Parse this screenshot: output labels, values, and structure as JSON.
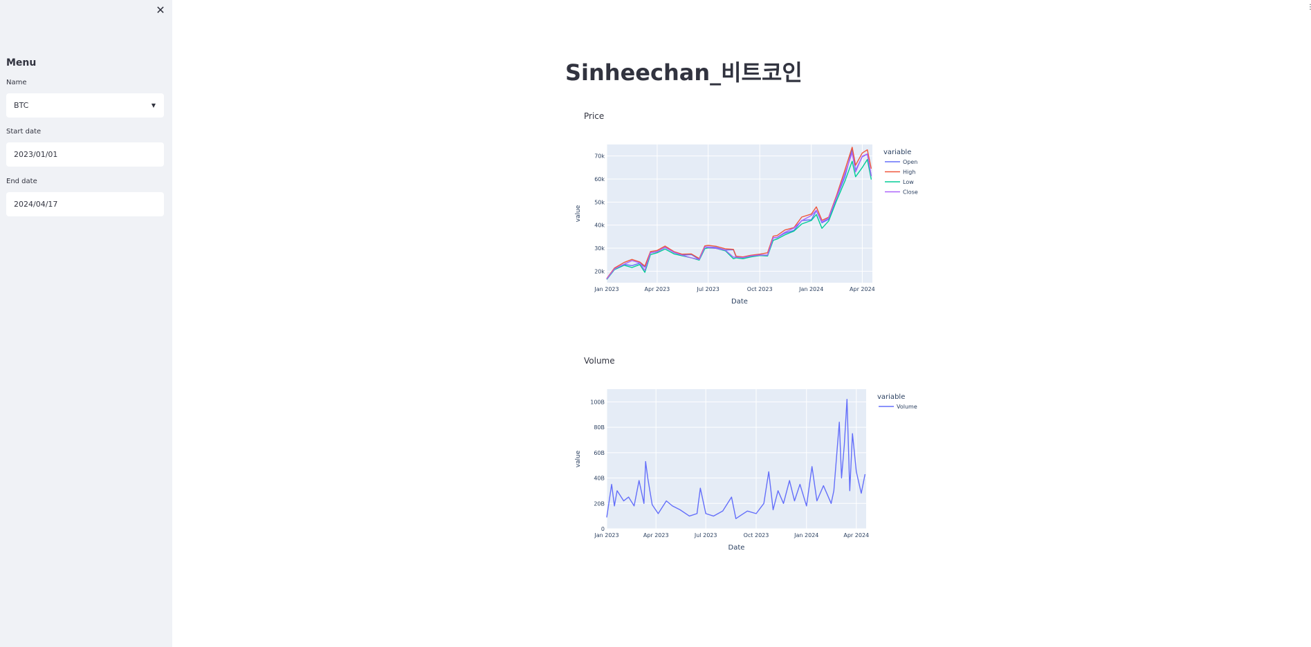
{
  "sidebar": {
    "menu_title": "Menu",
    "name_label": "Name",
    "name_value": "BTC",
    "start_label": "Start date",
    "start_value": "2023/01/01",
    "end_label": "End date",
    "end_value": "2024/04/17"
  },
  "main": {
    "title": "Sinheechan_비트코인",
    "price_label": "Price",
    "volume_label": "Volume"
  },
  "colors": {
    "open": "#636efa",
    "high": "#ef553b",
    "low": "#00cc96",
    "close": "#ab63fa",
    "volume": "#636efa",
    "plot_bg": "#e5ecf6"
  },
  "chart_data": [
    {
      "type": "line",
      "xlabel": "Date",
      "ylabel": "value",
      "legend_title": "variable",
      "legend_position": "right",
      "grid": true,
      "x_ticks": [
        "Jan 2023",
        "Apr 2023",
        "Jul 2023",
        "Oct 2023",
        "Jan 2024",
        "Apr 2024"
      ],
      "y_ticks": [
        "20k",
        "30k",
        "40k",
        "50k",
        "60k",
        "70k"
      ],
      "ylim": [
        15000,
        75000
      ],
      "x": [
        "2023-01-01",
        "2023-01-15",
        "2023-02-01",
        "2023-02-15",
        "2023-03-01",
        "2023-03-10",
        "2023-03-20",
        "2023-04-01",
        "2023-04-15",
        "2023-05-01",
        "2023-05-15",
        "2023-06-01",
        "2023-06-15",
        "2023-06-25",
        "2023-07-01",
        "2023-07-15",
        "2023-08-01",
        "2023-08-15",
        "2023-08-20",
        "2023-09-01",
        "2023-09-15",
        "2023-10-01",
        "2023-10-15",
        "2023-10-25",
        "2023-11-01",
        "2023-11-15",
        "2023-12-01",
        "2023-12-15",
        "2024-01-01",
        "2024-01-10",
        "2024-01-20",
        "2024-02-01",
        "2024-02-15",
        "2024-03-01",
        "2024-03-14",
        "2024-03-20",
        "2024-04-01",
        "2024-04-10",
        "2024-04-17"
      ],
      "series": [
        {
          "name": "Open",
          "values": [
            16600,
            20900,
            23000,
            22400,
            23500,
            21800,
            28000,
            28500,
            30400,
            28100,
            27000,
            27200,
            25100,
            30500,
            30500,
            30300,
            29200,
            29300,
            26100,
            25900,
            26500,
            27000,
            26900,
            34500,
            34600,
            36500,
            37700,
            42000,
            42300,
            46300,
            41000,
            42500,
            51800,
            61000,
            73000,
            63800,
            69700,
            70800,
            61300
          ]
        },
        {
          "name": "High",
          "values": [
            16800,
            21400,
            23800,
            25100,
            24000,
            22200,
            28500,
            29000,
            30900,
            28500,
            27400,
            27500,
            25500,
            31000,
            31200,
            30800,
            29700,
            29500,
            26500,
            26200,
            26900,
            27400,
            28000,
            35200,
            35500,
            37900,
            38900,
            43500,
            44800,
            47900,
            42100,
            43400,
            52900,
            63900,
            73800,
            66000,
            71300,
            72700,
            64500
          ]
        },
        {
          "name": "Low",
          "values": [
            16400,
            20700,
            22600,
            21600,
            22900,
            19500,
            27200,
            28000,
            29600,
            27500,
            26700,
            25800,
            24800,
            29800,
            30100,
            29900,
            28800,
            25400,
            25800,
            25400,
            26200,
            26800,
            26600,
            33400,
            34000,
            35800,
            37400,
            40500,
            42000,
            44600,
            38600,
            41800,
            50600,
            59100,
            67700,
            61000,
            65000,
            68500,
            59800
          ]
        },
        {
          "name": "Close",
          "values": [
            16600,
            21000,
            23000,
            24600,
            23600,
            20300,
            28000,
            28400,
            30300,
            28200,
            27000,
            25800,
            25100,
            30500,
            30300,
            29900,
            29100,
            26100,
            26100,
            25900,
            26600,
            27000,
            27000,
            34500,
            34700,
            36900,
            38700,
            41900,
            44200,
            46400,
            41400,
            43100,
            52100,
            62400,
            71400,
            63100,
            69900,
            70900,
            61300
          ]
        }
      ]
    },
    {
      "type": "line",
      "xlabel": "Date",
      "ylabel": "value",
      "legend_title": "variable",
      "legend_position": "right",
      "grid": true,
      "x_ticks": [
        "Jan 2023",
        "Apr 2023",
        "Jul 2023",
        "Oct 2023",
        "Jan 2024",
        "Apr 2024"
      ],
      "y_ticks": [
        "0",
        "20B",
        "40B",
        "60B",
        "80B",
        "100B"
      ],
      "ylim": [
        0,
        110
      ],
      "x": [
        "2023-01-01",
        "2023-01-10",
        "2023-01-15",
        "2023-01-20",
        "2023-02-01",
        "2023-02-10",
        "2023-02-20",
        "2023-03-01",
        "2023-03-10",
        "2023-03-13",
        "2023-03-17",
        "2023-03-25",
        "2023-04-05",
        "2023-04-20",
        "2023-05-01",
        "2023-05-15",
        "2023-06-01",
        "2023-06-15",
        "2023-06-21",
        "2023-07-01",
        "2023-07-15",
        "2023-08-01",
        "2023-08-17",
        "2023-08-25",
        "2023-09-01",
        "2023-09-15",
        "2023-10-01",
        "2023-10-15",
        "2023-10-24",
        "2023-11-01",
        "2023-11-10",
        "2023-11-20",
        "2023-12-01",
        "2023-12-10",
        "2023-12-20",
        "2024-01-01",
        "2024-01-11",
        "2024-01-20",
        "2024-02-01",
        "2024-02-15",
        "2024-02-20",
        "2024-03-01",
        "2024-03-05",
        "2024-03-10",
        "2024-03-15",
        "2024-03-20",
        "2024-03-25",
        "2024-04-01",
        "2024-04-10",
        "2024-04-17"
      ],
      "series": [
        {
          "name": "Volume",
          "values": [
            9,
            35,
            18,
            30,
            22,
            25,
            18,
            38,
            20,
            53,
            40,
            19,
            12,
            22,
            18,
            15,
            10,
            12,
            32,
            12,
            10,
            14,
            25,
            8,
            10,
            14,
            12,
            20,
            45,
            15,
            30,
            20,
            38,
            22,
            35,
            18,
            49,
            22,
            34,
            20,
            30,
            84,
            40,
            66,
            102,
            30,
            75,
            45,
            28,
            43
          ]
        }
      ]
    }
  ]
}
